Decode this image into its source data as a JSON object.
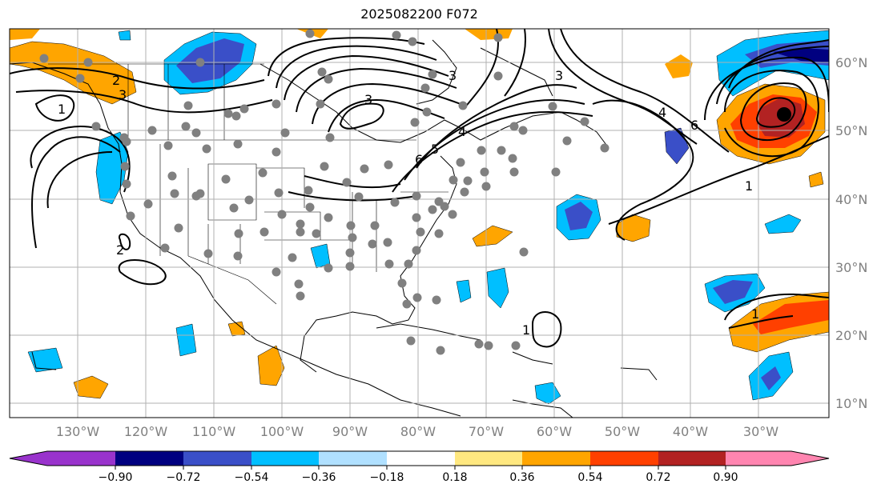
{
  "title": "2025082200 F072",
  "map": {
    "lon_labels": [
      "130°W",
      "120°W",
      "110°W",
      "100°W",
      "90°W",
      "80°W",
      "70°W",
      "60°W",
      "50°W",
      "40°W",
      "30°W"
    ],
    "lat_labels": [
      "60°N",
      "50°N",
      "40°N",
      "30°N",
      "20°N",
      "10°N"
    ],
    "contour_labels": [
      "2",
      "3",
      "1",
      "3",
      "3",
      "4",
      "5",
      "6",
      "3",
      "4",
      "6",
      "1",
      "2",
      "1",
      "1"
    ],
    "colors": {
      "contour": "#000000",
      "coast": "#000000",
      "grid": "#b0b0b0",
      "station": "#808080"
    }
  },
  "colorbar": {
    "ticks": [
      "−0.90",
      "−0.72",
      "−0.54",
      "−0.36",
      "−0.18",
      "0.18",
      "0.36",
      "0.54",
      "0.72",
      "0.90"
    ],
    "colors": [
      "#9933cc",
      "#000080",
      "#3a4fc8",
      "#00bfff",
      "#b0e0ff",
      "#ffffff",
      "#ffe880",
      "#ffa500",
      "#ff4000",
      "#b22222",
      "#ff85b0"
    ]
  }
}
